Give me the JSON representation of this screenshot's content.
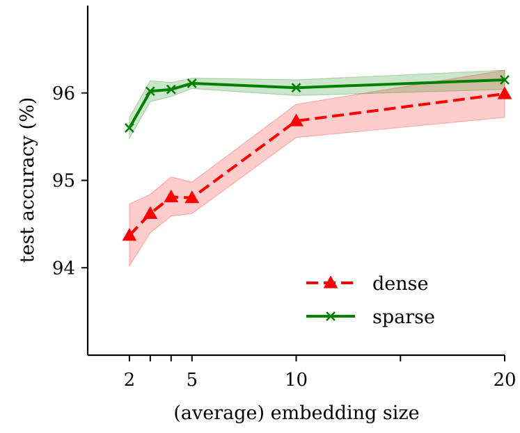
{
  "chart_data": {
    "type": "line",
    "title": "",
    "xlabel": "(average) embedding size",
    "ylabel": "test accuracy (%)",
    "xlim": [
      0,
      20
    ],
    "ylim": [
      93,
      97
    ],
    "x_ticks": [
      2,
      3,
      4,
      5,
      10,
      15,
      20
    ],
    "x_tick_labels": [
      {
        "x": 2,
        "label": "2"
      },
      {
        "x": 5,
        "label": "5"
      },
      {
        "x": 10,
        "label": "10"
      },
      {
        "x": 20,
        "label": "20"
      }
    ],
    "y_ticks": [
      94,
      95,
      96
    ],
    "y_tick_labels": [
      "94",
      "95",
      "96"
    ],
    "grid": false,
    "legend_position": "lower-right",
    "series": [
      {
        "name": "dense",
        "color": "#ff0000",
        "line_style": "dashed",
        "marker": "triangle",
        "x": [
          2,
          3,
          4,
          5,
          10,
          20
        ],
        "values": [
          94.37,
          94.62,
          94.81,
          94.8,
          95.68,
          95.99
        ],
        "lower": [
          94.02,
          94.4,
          94.59,
          94.62,
          95.49,
          95.72
        ],
        "upper": [
          94.73,
          94.84,
          95.04,
          94.98,
          95.87,
          96.26
        ]
      },
      {
        "name": "sparse",
        "color": "#008000",
        "line_style": "solid",
        "marker": "x",
        "x": [
          2,
          3,
          4,
          5,
          10,
          20
        ],
        "values": [
          95.6,
          96.02,
          96.04,
          96.11,
          96.06,
          96.15
        ],
        "lower": [
          95.48,
          95.9,
          95.96,
          96.05,
          95.97,
          96.04
        ],
        "upper": [
          95.72,
          96.14,
          96.12,
          96.17,
          96.15,
          96.26
        ]
      }
    ]
  }
}
